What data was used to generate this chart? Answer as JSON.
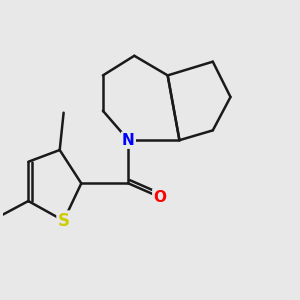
{
  "background_color": "#e8e8e8",
  "bond_color": "#1a1a1a",
  "bond_width": 1.8,
  "atom_colors": {
    "N": "#0000ff",
    "O": "#ff0000",
    "S": "#cccc00",
    "C": "#1a1a1a"
  },
  "font_size": 10.5,
  "fig_width": 3.0,
  "fig_height": 3.0,
  "dpi": 100,
  "xlim": [
    1.0,
    8.5
  ],
  "ylim": [
    1.0,
    8.5
  ]
}
